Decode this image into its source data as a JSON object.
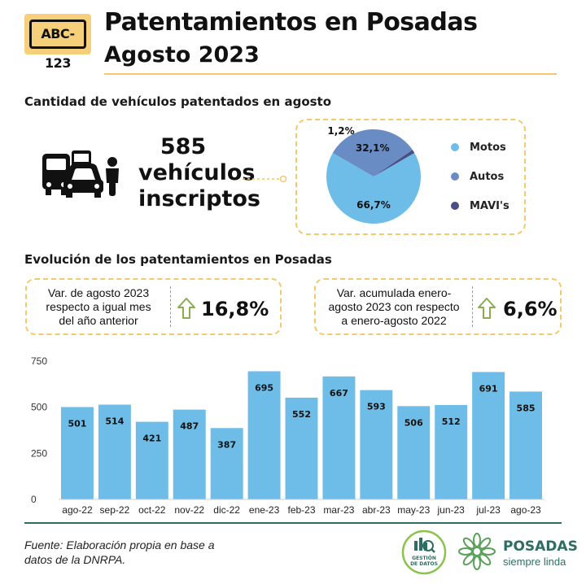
{
  "header": {
    "plate": "ABC-123",
    "title": "Patentamientos en Posadas",
    "subtitle": "Agosto 2023"
  },
  "section1": {
    "title": "Cantidad de vehículos patentados en agosto",
    "count_number": "585",
    "count_line1": "vehículos",
    "count_line2": "inscriptos"
  },
  "colors": {
    "bar": "#6dbde8",
    "pie_motos": "#6dbde8",
    "pie_autos": "#6a8cc5",
    "pie_mavi": "#4a4f86",
    "accent_gold": "#f2c96b",
    "arrow_green": "#8bab4f",
    "logo_green": "#2e6e62"
  },
  "section2": {
    "title": "Evolución de los patentamientos en Posadas",
    "card1": {
      "line1": "Var. de agosto 2023",
      "line2": "respecto a igual mes",
      "line3": "del año anterior",
      "value": "16,8%",
      "icon": "arrow-up-icon"
    },
    "card2": {
      "line1": "Var. acumulada enero-",
      "line2": "agosto 2023 con respecto",
      "line3": "a enero-agosto 2022",
      "value": "6,6%",
      "icon": "arrow-up-icon"
    }
  },
  "footer": {
    "source_line1": "Fuente: Elaboración propia en base a",
    "source_line2": "datos de la DNRPA.",
    "badge_line1": "GESTIÓN",
    "badge_line2": "DE DATOS",
    "logo_line1": "POSADAS",
    "logo_line2": "siempre linda"
  },
  "chart_data": [
    {
      "type": "pie",
      "labels": [
        "Motos",
        "Autos",
        "MAVI's"
      ],
      "values": [
        66.7,
        32.1,
        1.2
      ],
      "value_labels": [
        "66,7%",
        "32,1%",
        "1,2%"
      ]
    },
    {
      "type": "bar",
      "categories": [
        "ago-22",
        "sep-22",
        "oct-22",
        "nov-22",
        "dic-22",
        "ene-23",
        "feb-23",
        "mar-23",
        "abr-23",
        "may-23",
        "jun-23",
        "jul-23",
        "ago-23"
      ],
      "values": [
        501,
        514,
        421,
        487,
        387,
        695,
        552,
        667,
        593,
        506,
        512,
        691,
        585
      ],
      "yticks": [
        "0",
        "250",
        "500",
        "750"
      ],
      "ylim": [
        0,
        750
      ],
      "grid": false
    }
  ]
}
